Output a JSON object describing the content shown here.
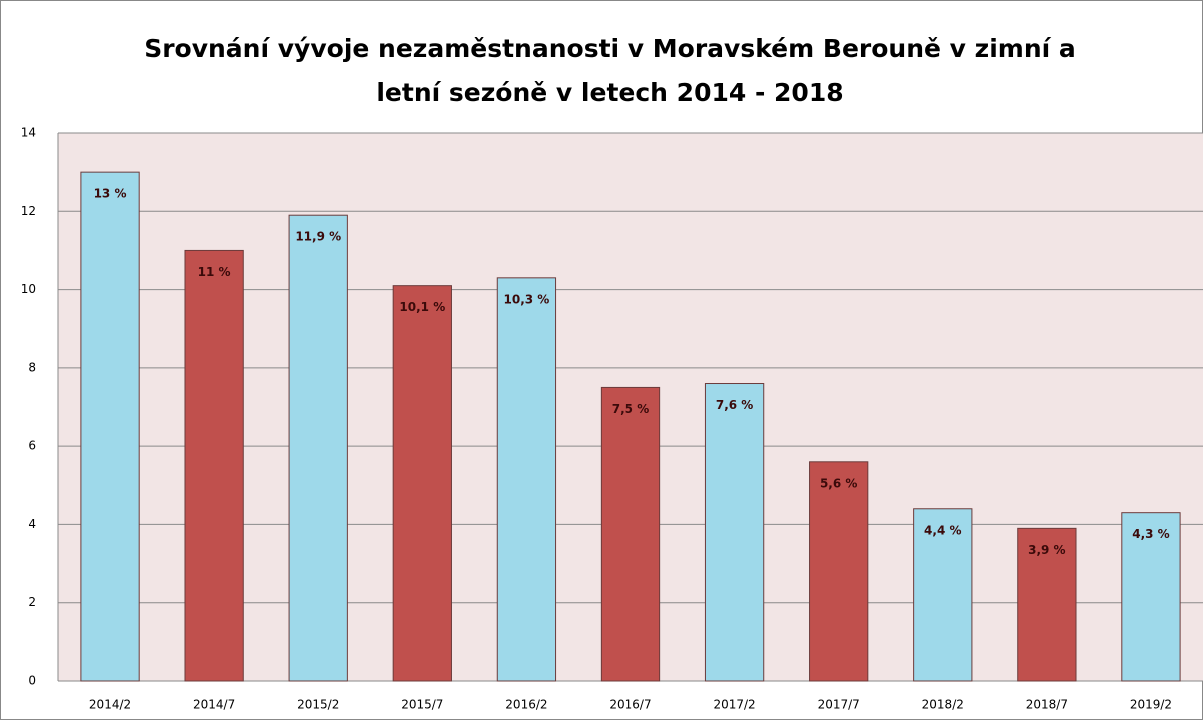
{
  "chart_data": {
    "type": "bar",
    "title_lines": [
      "Srovnání vývoje nezaměstnanosti v Moravském Berouně v zimní a",
      "letní sezóně v letech 2014 - 2018"
    ],
    "categories": [
      "2014/2",
      "2014/7",
      "2015/2",
      "2015/7",
      "2016/2",
      "2016/7",
      "2017/2",
      "2017/7",
      "2018/2",
      "2018/7",
      "2019/2"
    ],
    "values": [
      13,
      11,
      11.9,
      10.1,
      10.3,
      7.5,
      7.6,
      5.6,
      4.4,
      3.9,
      4.3
    ],
    "value_labels": [
      "13 %",
      "11 %",
      "11,9 %",
      "10,1 %",
      "10,3 %",
      "7,5 %",
      "7,6 %",
      "5,6 %",
      "4,4 %",
      "3,9 %",
      "4,3 %"
    ],
    "colors": [
      "#9ed9ea",
      "#c0504d",
      "#9ed9ea",
      "#c0504d",
      "#9ed9ea",
      "#c0504d",
      "#9ed9ea",
      "#c0504d",
      "#9ed9ea",
      "#c0504d",
      "#9ed9ea"
    ],
    "ylim": [
      0,
      14
    ],
    "yticks": [
      0,
      2,
      4,
      6,
      8,
      10,
      12,
      14
    ],
    "grid": true
  }
}
